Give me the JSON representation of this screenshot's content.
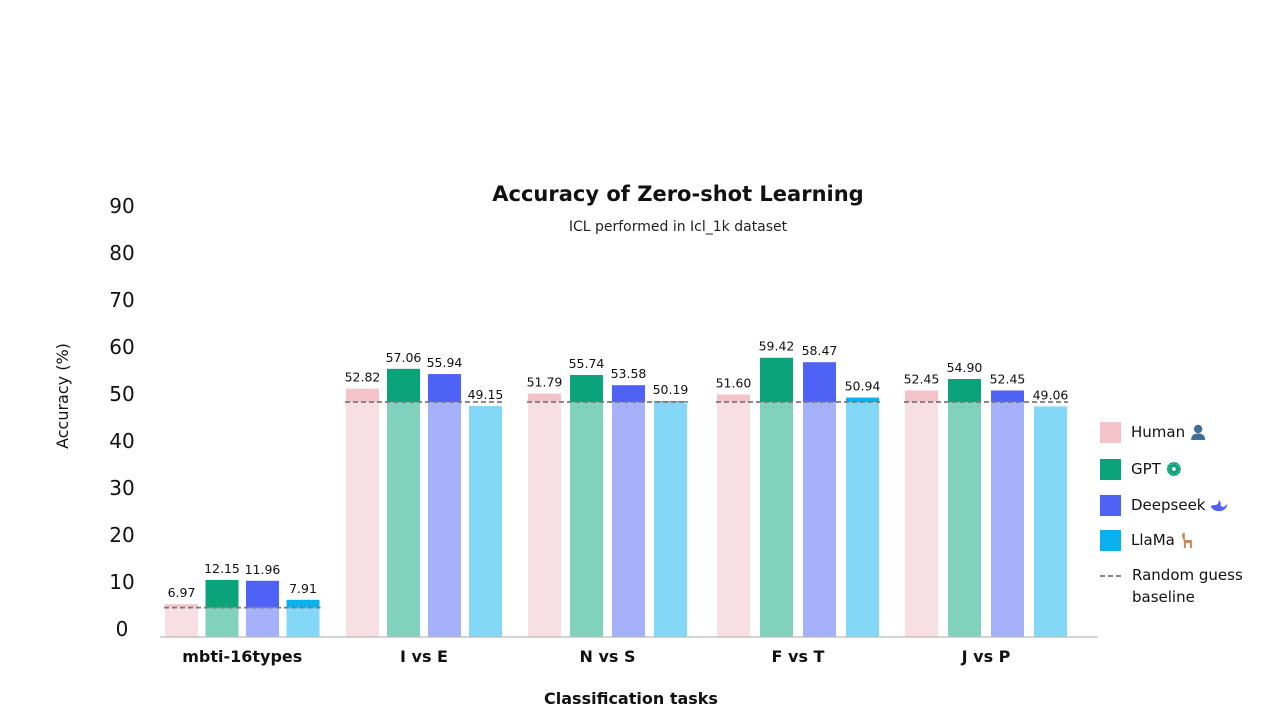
{
  "chart_data": {
    "type": "bar",
    "title": "Accuracy of  Zero-shot Learning",
    "subtitle": "ICL performed in Icl_1k dataset",
    "xlabel": "Classification tasks",
    "ylabel": "Accuracy (%)",
    "ylim": [
      0,
      90
    ],
    "yticks": [
      0,
      10,
      20,
      30,
      40,
      50,
      60,
      70,
      80,
      90
    ],
    "categories": [
      "mbti-16types",
      "I vs E",
      "N vs S",
      "F vs T",
      "J vs P"
    ],
    "series": [
      {
        "name": "Human",
        "icon": "person-icon",
        "color": "#f4c2c9",
        "fade": "#f8dfe3",
        "values": [
          6.97,
          52.82,
          51.79,
          51.6,
          52.45
        ]
      },
      {
        "name": "GPT",
        "icon": "openai-icon",
        "color": "#0aa37a",
        "fade": "#80d2bd",
        "values": [
          12.15,
          57.06,
          55.74,
          59.42,
          54.9
        ]
      },
      {
        "name": "Deepseek",
        "icon": "whale-icon",
        "color": "#4e63f5",
        "fade": "#a5b2fb",
        "values": [
          11.96,
          55.94,
          53.58,
          58.47,
          52.45
        ]
      },
      {
        "name": "LlaMa",
        "icon": "llama-icon",
        "color": "#0bb0ef",
        "fade": "#82d8f6",
        "values": [
          7.91,
          49.15,
          50.19,
          50.94,
          49.06
        ]
      }
    ],
    "baseline": {
      "label": "Random guess baseline",
      "label_lines": [
        "Random guess",
        "baseline"
      ],
      "values": [
        6.25,
        50,
        50,
        50,
        50
      ]
    },
    "legend_placement": "right",
    "grid": false
  }
}
